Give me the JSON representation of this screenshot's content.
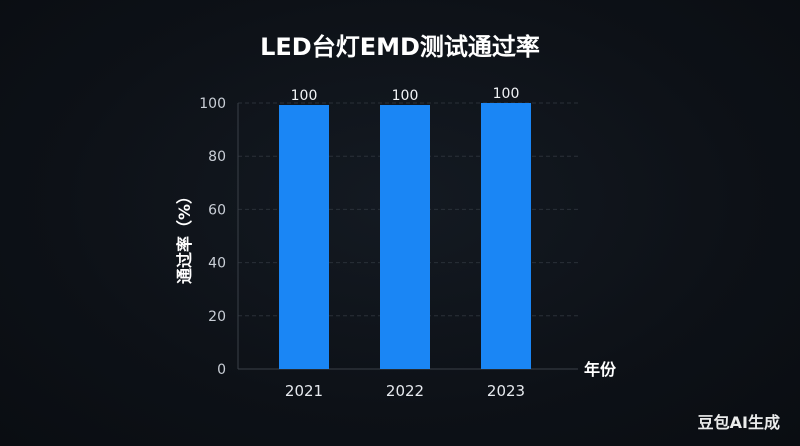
{
  "chart_data": {
    "type": "bar",
    "title": "LED台灯EMD测试通过率",
    "categories": [
      "2021",
      "2022",
      "2023"
    ],
    "values": [
      100,
      100,
      100
    ],
    "data_labels": [
      "100",
      "100",
      "100"
    ],
    "xlabel": "年份",
    "ylabel": "通过率（%）",
    "ylim": [
      0,
      100
    ],
    "yticks": [
      0,
      20,
      40,
      60,
      80,
      100
    ],
    "grid": true,
    "bar_color": "#1a86f5"
  },
  "watermark": "豆包AI生成"
}
